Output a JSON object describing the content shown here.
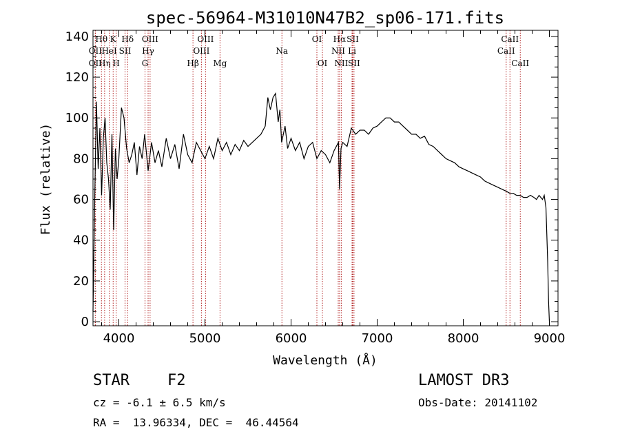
{
  "chart_data": {
    "type": "line",
    "title": "spec-56964-M31010N47B2_sp06-171.fits",
    "xlabel": "Wavelength (Å)",
    "ylabel": "Flux (relative)",
    "xlim": [
      3700,
      9100
    ],
    "ylim": [
      -2,
      143
    ],
    "x_ticks": [
      4000,
      5000,
      6000,
      7000,
      8000,
      9000
    ],
    "y_ticks": [
      0,
      20,
      40,
      60,
      80,
      100,
      120,
      140
    ],
    "grid": false,
    "spectrum": {
      "x": [
        3700,
        3720,
        3740,
        3760,
        3780,
        3800,
        3820,
        3840,
        3860,
        3880,
        3900,
        3920,
        3940,
        3960,
        3980,
        4000,
        4030,
        4060,
        4090,
        4120,
        4150,
        4180,
        4210,
        4240,
        4270,
        4300,
        4340,
        4380,
        4420,
        4460,
        4500,
        4550,
        4600,
        4650,
        4700,
        4750,
        4800,
        4850,
        4900,
        4950,
        5000,
        5050,
        5100,
        5150,
        5200,
        5250,
        5300,
        5350,
        5400,
        5450,
        5500,
        5550,
        5600,
        5650,
        5700,
        5730,
        5760,
        5790,
        5820,
        5850,
        5870,
        5890,
        5910,
        5930,
        5960,
        6000,
        6050,
        6100,
        6150,
        6200,
        6250,
        6300,
        6350,
        6400,
        6450,
        6500,
        6550,
        6563,
        6580,
        6600,
        6650,
        6700,
        6750,
        6800,
        6850,
        6900,
        6950,
        7000,
        7050,
        7100,
        7150,
        7200,
        7250,
        7300,
        7350,
        7400,
        7450,
        7500,
        7550,
        7600,
        7650,
        7700,
        7750,
        7800,
        7850,
        7900,
        7950,
        8000,
        8050,
        8100,
        8150,
        8200,
        8250,
        8300,
        8350,
        8400,
        8450,
        8500,
        8540,
        8580,
        8620,
        8660,
        8700,
        8740,
        8780,
        8820,
        8850,
        8880,
        8900,
        8920,
        8940,
        8960,
        8980,
        8990,
        9000
      ],
      "y": [
        5,
        60,
        108,
        75,
        95,
        62,
        90,
        100,
        78,
        70,
        55,
        92,
        45,
        85,
        70,
        80,
        105,
        100,
        85,
        78,
        82,
        88,
        72,
        86,
        80,
        92,
        74,
        88,
        78,
        84,
        76,
        90,
        80,
        87,
        75,
        92,
        82,
        78,
        88,
        84,
        80,
        86,
        80,
        90,
        84,
        88,
        82,
        87,
        84,
        89,
        86,
        88,
        90,
        92,
        96,
        110,
        104,
        110,
        112,
        98,
        104,
        88,
        92,
        96,
        85,
        90,
        84,
        88,
        80,
        86,
        88,
        80,
        84,
        82,
        78,
        84,
        88,
        65,
        85,
        88,
        86,
        95,
        92,
        94,
        94,
        92,
        95,
        96,
        98,
        100,
        100,
        98,
        98,
        96,
        94,
        92,
        92,
        90,
        91,
        87,
        86,
        84,
        82,
        80,
        79,
        78,
        76,
        75,
        74,
        73,
        72,
        71,
        69,
        68,
        67,
        66,
        65,
        64,
        63,
        63,
        62,
        62,
        61,
        61,
        62,
        61,
        60,
        62,
        61,
        60,
        62,
        56,
        30,
        10,
        0
      ]
    },
    "line_markers": [
      {
        "label": "OII",
        "x": 3727,
        "row": 2
      },
      {
        "label": "OII",
        "x": 3727,
        "row": 3
      },
      {
        "label": "Hθ",
        "x": 3798,
        "row": 1
      },
      {
        "label": "Hη",
        "x": 3835,
        "row": 3
      },
      {
        "label": "HeI",
        "x": 3889,
        "row": 2
      },
      {
        "label": "K",
        "x": 3934,
        "row": 1
      },
      {
        "label": "SII",
        "x": 4072,
        "row": 2
      },
      {
        "label": "H",
        "x": 3969,
        "row": 3
      },
      {
        "label": "Hδ",
        "x": 4102,
        "row": 1
      },
      {
        "label": "OIII",
        "x": 4363,
        "row": 1
      },
      {
        "label": "Hγ",
        "x": 4340,
        "row": 2
      },
      {
        "label": "G",
        "x": 4304,
        "row": 3
      },
      {
        "label": "Hβ",
        "x": 4861,
        "row": 3
      },
      {
        "label": "OIII",
        "x": 5007,
        "row": 1
      },
      {
        "label": "OIII",
        "x": 4959,
        "row": 2
      },
      {
        "label": "Mg",
        "x": 5175,
        "row": 3
      },
      {
        "label": "Na",
        "x": 5894,
        "row": 2
      },
      {
        "label": "OI",
        "x": 6300,
        "row": 1
      },
      {
        "label": "OI",
        "x": 6364,
        "row": 3
      },
      {
        "label": "Hα",
        "x": 6563,
        "row": 1
      },
      {
        "label": "NII",
        "x": 6548,
        "row": 2
      },
      {
        "label": "NII",
        "x": 6583,
        "row": 3
      },
      {
        "label": "SII",
        "x": 6716,
        "row": 1
      },
      {
        "label": "Li",
        "x": 6708,
        "row": 2
      },
      {
        "label": "SII",
        "x": 6731,
        "row": 3
      },
      {
        "label": "CaII",
        "x": 8498,
        "row": 2
      },
      {
        "label": "CaII",
        "x": 8542,
        "row": 1
      },
      {
        "label": "CaII",
        "x": 8662,
        "row": 3
      }
    ]
  },
  "info": {
    "obj_class": "STAR",
    "subclass": "F2",
    "survey": "LAMOST DR3",
    "cz": "cz = -6.1 ± 6.5 km/s",
    "obs_date": "Obs-Date: 20141102",
    "coords": "RA =  13.96334, DEC =  46.44564"
  }
}
